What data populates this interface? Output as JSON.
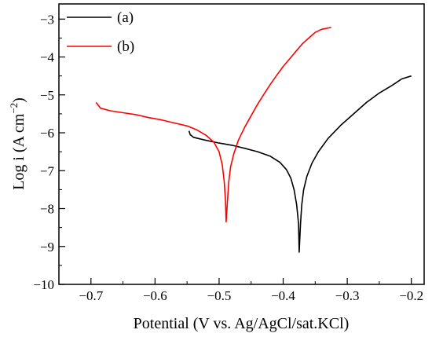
{
  "chart_data": {
    "type": "line",
    "title": "",
    "xlabel": "Potential (V vs. Ag/AgCl/sat.KCl)",
    "ylabel_main": "Log i (A cm",
    "ylabel_sup": "−2",
    "ylabel_close": ")",
    "xlim": [
      -0.75,
      -0.18
    ],
    "ylim": [
      -10,
      -2.6
    ],
    "xticks": [
      -0.7,
      -0.6,
      -0.5,
      -0.4,
      -0.3,
      -0.2
    ],
    "xtick_labels": [
      "−0.7",
      "−0.6",
      "−0.5",
      "−0.4",
      "−0.3",
      "−0.2"
    ],
    "yticks": [
      -10,
      -9,
      -8,
      -7,
      -6,
      -5,
      -4,
      -3
    ],
    "ytick_labels": [
      "−10",
      "−9",
      "−8",
      "−7",
      "−6",
      "−5",
      "−4",
      "−3"
    ],
    "grid": false,
    "legend_position": "top-left",
    "series": [
      {
        "name": "(a)",
        "color": "#000000",
        "points": [
          [
            -0.547,
            -5.95
          ],
          [
            -0.545,
            -6.05
          ],
          [
            -0.54,
            -6.12
          ],
          [
            -0.52,
            -6.2
          ],
          [
            -0.5,
            -6.27
          ],
          [
            -0.48,
            -6.33
          ],
          [
            -0.46,
            -6.41
          ],
          [
            -0.44,
            -6.5
          ],
          [
            -0.42,
            -6.62
          ],
          [
            -0.405,
            -6.78
          ],
          [
            -0.395,
            -6.97
          ],
          [
            -0.388,
            -7.2
          ],
          [
            -0.383,
            -7.5
          ],
          [
            -0.379,
            -7.9
          ],
          [
            -0.376,
            -8.4
          ],
          [
            -0.375,
            -9.15
          ],
          [
            -0.373,
            -8.4
          ],
          [
            -0.371,
            -7.9
          ],
          [
            -0.368,
            -7.5
          ],
          [
            -0.363,
            -7.15
          ],
          [
            -0.355,
            -6.8
          ],
          [
            -0.345,
            -6.5
          ],
          [
            -0.33,
            -6.15
          ],
          [
            -0.31,
            -5.8
          ],
          [
            -0.29,
            -5.5
          ],
          [
            -0.27,
            -5.2
          ],
          [
            -0.25,
            -4.95
          ],
          [
            -0.23,
            -4.75
          ],
          [
            -0.215,
            -4.58
          ],
          [
            -0.2,
            -4.5
          ]
        ]
      },
      {
        "name": "(b)",
        "color": "#ff0000",
        "points": [
          [
            -0.692,
            -5.2
          ],
          [
            -0.685,
            -5.35
          ],
          [
            -0.67,
            -5.42
          ],
          [
            -0.65,
            -5.47
          ],
          [
            -0.63,
            -5.52
          ],
          [
            -0.61,
            -5.6
          ],
          [
            -0.59,
            -5.66
          ],
          [
            -0.57,
            -5.74
          ],
          [
            -0.55,
            -5.82
          ],
          [
            -0.535,
            -5.92
          ],
          [
            -0.52,
            -6.07
          ],
          [
            -0.508,
            -6.25
          ],
          [
            -0.5,
            -6.5
          ],
          [
            -0.495,
            -6.85
          ],
          [
            -0.492,
            -7.3
          ],
          [
            -0.49,
            -7.8
          ],
          [
            -0.489,
            -8.35
          ],
          [
            -0.487,
            -7.8
          ],
          [
            -0.485,
            -7.3
          ],
          [
            -0.482,
            -6.9
          ],
          [
            -0.477,
            -6.55
          ],
          [
            -0.47,
            -6.2
          ],
          [
            -0.46,
            -5.85
          ],
          [
            -0.45,
            -5.55
          ],
          [
            -0.44,
            -5.25
          ],
          [
            -0.43,
            -4.98
          ],
          [
            -0.42,
            -4.72
          ],
          [
            -0.41,
            -4.48
          ],
          [
            -0.4,
            -4.25
          ],
          [
            -0.39,
            -4.05
          ],
          [
            -0.38,
            -3.85
          ],
          [
            -0.37,
            -3.65
          ],
          [
            -0.36,
            -3.5
          ],
          [
            -0.35,
            -3.35
          ],
          [
            -0.34,
            -3.27
          ],
          [
            -0.325,
            -3.22
          ]
        ]
      }
    ]
  }
}
